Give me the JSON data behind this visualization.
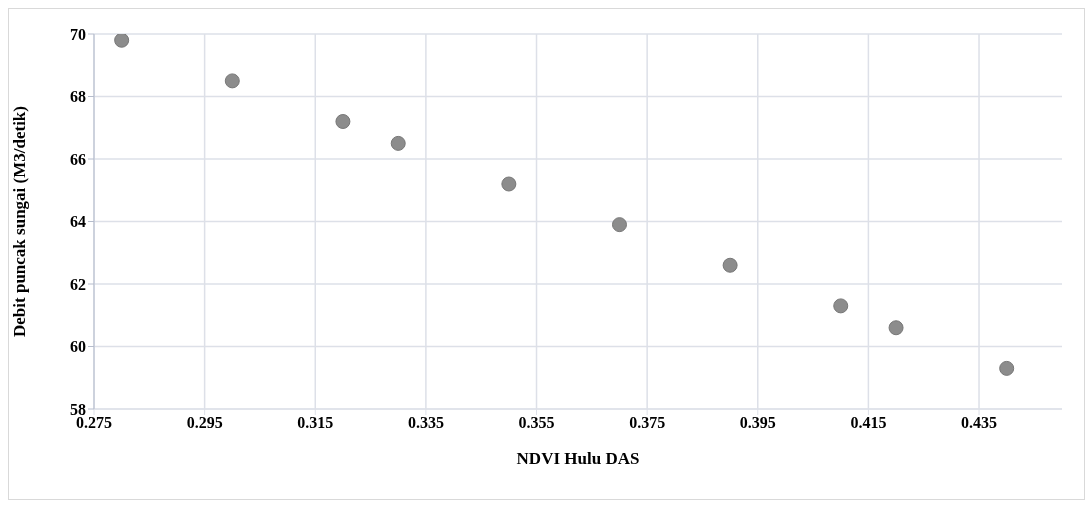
{
  "chart_data": {
    "type": "scatter",
    "xlabel": "NDVI Hulu DAS",
    "ylabel": "Debit puncak sungai (M3/detik)",
    "x": [
      0.28,
      0.3,
      0.32,
      0.33,
      0.35,
      0.37,
      0.39,
      0.41,
      0.42,
      0.44
    ],
    "values": [
      69.8,
      68.5,
      67.2,
      66.5,
      65.2,
      63.9,
      62.6,
      61.3,
      60.6,
      59.3
    ],
    "color": "#8c8c8c",
    "marker": "circle",
    "xlim": [
      0.275,
      0.45
    ],
    "xticks": [
      0.275,
      0.295,
      0.315,
      0.335,
      0.355,
      0.375,
      0.395,
      0.415,
      0.435
    ],
    "ylim": [
      58,
      70
    ],
    "yticks": [
      58,
      60,
      62,
      64,
      66,
      68,
      70
    ],
    "grid": true,
    "legend": false
  }
}
